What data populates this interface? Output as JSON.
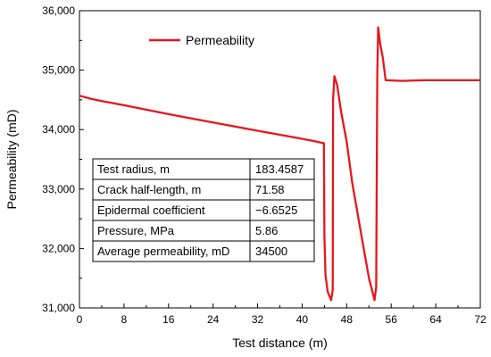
{
  "chart_data": {
    "type": "line",
    "xlabel": "Test distance (m)",
    "ylabel": "Permeability (mD)",
    "xlim": [
      0,
      72
    ],
    "ylim": [
      31000,
      36000
    ],
    "x_ticks": [
      0,
      8,
      16,
      24,
      32,
      40,
      48,
      56,
      64,
      72
    ],
    "y_ticks": [
      31000,
      32000,
      33000,
      34000,
      35000,
      36000
    ],
    "x_tick_labels": [
      "0",
      "8",
      "16",
      "24",
      "32",
      "40",
      "48",
      "56",
      "64",
      "72"
    ],
    "y_tick_labels": [
      "31,000",
      "32,000",
      "33,000",
      "34,000",
      "35,000",
      "36,000"
    ],
    "grid": false,
    "legend_position": "top-left",
    "series": [
      {
        "name": "Permeability",
        "color": "#e8161c",
        "points": [
          [
            0,
            34570
          ],
          [
            2,
            34520
          ],
          [
            4,
            34480
          ],
          [
            8,
            34410
          ],
          [
            16,
            34260
          ],
          [
            24,
            34120
          ],
          [
            32,
            33980
          ],
          [
            38,
            33880
          ],
          [
            42,
            33810
          ],
          [
            43.9,
            33770
          ],
          [
            44.0,
            32200
          ],
          [
            44.2,
            31550
          ],
          [
            44.6,
            31270
          ],
          [
            45.2,
            31130
          ],
          [
            45.5,
            31300
          ],
          [
            45.55,
            34500
          ],
          [
            45.8,
            34900
          ],
          [
            46.3,
            34750
          ],
          [
            47.0,
            34300
          ],
          [
            48.0,
            33800
          ],
          [
            49.0,
            33100
          ],
          [
            50.5,
            32300
          ],
          [
            52.0,
            31500
          ],
          [
            52.7,
            31250
          ],
          [
            53.0,
            31130
          ],
          [
            53.3,
            31350
          ],
          [
            53.5,
            34900
          ],
          [
            53.65,
            35720
          ],
          [
            54.0,
            35450
          ],
          [
            54.5,
            35200
          ],
          [
            55.0,
            34830
          ],
          [
            58,
            34820
          ],
          [
            62,
            34830
          ],
          [
            66,
            34830
          ],
          [
            72,
            34830
          ]
        ]
      }
    ]
  },
  "parameters_table": {
    "rows": [
      {
        "name": "Test radius, m",
        "value": "183.4587"
      },
      {
        "name": "Crack half-length, m",
        "value": "71.58"
      },
      {
        "name": "Epidermal coefficient",
        "value": "−6.6525"
      },
      {
        "name": "Pressure, MPa",
        "value": "5.86"
      },
      {
        "name": "Average permeability, mD",
        "value": "34500"
      }
    ]
  }
}
